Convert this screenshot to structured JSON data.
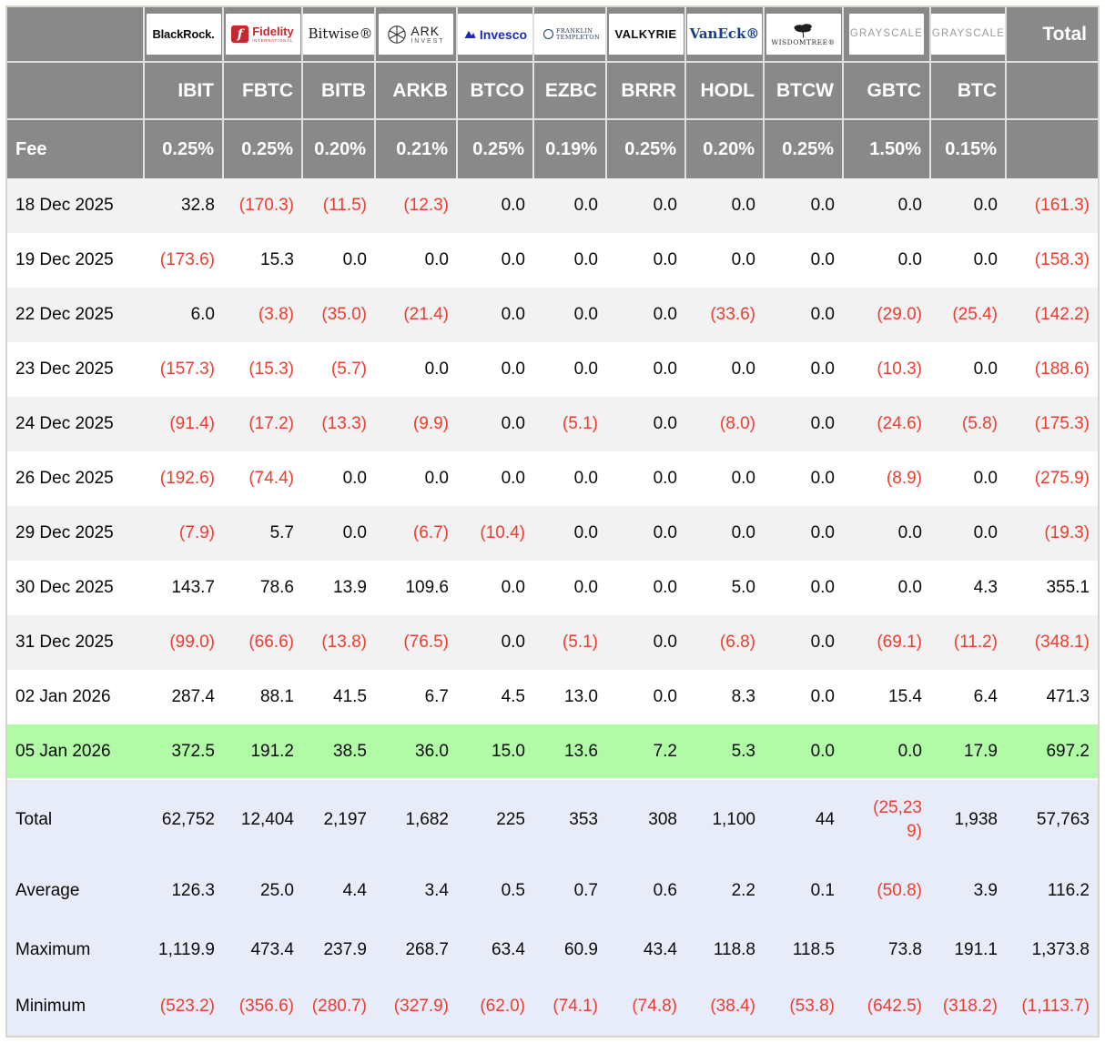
{
  "colors": {
    "hdr-gray": "#898989",
    "row-gray": "#f2f2f2",
    "row-green": "#b1fba6",
    "sum-bg": "#e8ecf8",
    "neg-red": "#f03b2e",
    "fidelity-red": "#c5282f",
    "invesco-blue": "#1c2bbe",
    "vaneck-blue": "#153d8a",
    "franklin-navy": "#233a63",
    "grayscale-gray": "#9b9b9b"
  },
  "chart_data": {
    "type": "table",
    "labels": {
      "fee": "Fee",
      "total_column": "Total"
    },
    "providers": [
      {
        "provider": "BlackRock",
        "logo": "blackrock",
        "logo_text": "BlackRock.",
        "ticker": "IBIT",
        "fee": "0.25%"
      },
      {
        "provider": "Fidelity",
        "logo": "fidelity",
        "logo_text": "Fidelity",
        "logo_sub": "INTERNATIONAL",
        "ticker": "FBTC",
        "fee": "0.25%"
      },
      {
        "provider": "Bitwise",
        "logo": "bitwise",
        "logo_text": "Bitwise®",
        "ticker": "BITB",
        "fee": "0.20%"
      },
      {
        "provider": "ARK Invest",
        "logo": "ark",
        "logo_text": "ARK",
        "logo_sub": "INVEST",
        "ticker": "ARKB",
        "fee": "0.21%"
      },
      {
        "provider": "Invesco",
        "logo": "invesco",
        "logo_text": "Invesco",
        "ticker": "BTCO",
        "fee": "0.25%"
      },
      {
        "provider": "Franklin Templeton",
        "logo": "franklin",
        "logo_text": "FRANKLIN",
        "logo_sub": "TEMPLETON",
        "ticker": "EZBC",
        "fee": "0.19%"
      },
      {
        "provider": "Valkyrie",
        "logo": "valkyrie",
        "logo_text": "VALKYRIE",
        "ticker": "BRRR",
        "fee": "0.25%"
      },
      {
        "provider": "VanEck",
        "logo": "vaneck",
        "logo_text": "VanEck®",
        "ticker": "HODL",
        "fee": "0.20%"
      },
      {
        "provider": "WisdomTree",
        "logo": "wisdomtree",
        "logo_text": "WISDOMTREE®",
        "ticker": "BTCW",
        "fee": "0.25%"
      },
      {
        "provider": "Grayscale",
        "logo": "grayscale",
        "logo_text": "GRAYSCALE",
        "ticker": "GBTC",
        "fee": "1.50%"
      },
      {
        "provider": "Grayscale",
        "logo": "grayscale",
        "logo_text": "GRAYSCALE",
        "ticker": "BTC",
        "fee": "0.15%"
      }
    ],
    "daily_rows": [
      {
        "date": "18 Dec 2025",
        "values": [
          "32.8",
          "(170.3)",
          "(11.5)",
          "(12.3)",
          "0.0",
          "0.0",
          "0.0",
          "0.0",
          "0.0",
          "0.0",
          "0.0"
        ],
        "total": "(161.3)",
        "highlight": false
      },
      {
        "date": "19 Dec 2025",
        "values": [
          "(173.6)",
          "15.3",
          "0.0",
          "0.0",
          "0.0",
          "0.0",
          "0.0",
          "0.0",
          "0.0",
          "0.0",
          "0.0"
        ],
        "total": "(158.3)",
        "highlight": false
      },
      {
        "date": "22 Dec 2025",
        "values": [
          "6.0",
          "(3.8)",
          "(35.0)",
          "(21.4)",
          "0.0",
          "0.0",
          "0.0",
          "(33.6)",
          "0.0",
          "(29.0)",
          "(25.4)"
        ],
        "total": "(142.2)",
        "highlight": false
      },
      {
        "date": "23 Dec 2025",
        "values": [
          "(157.3)",
          "(15.3)",
          "(5.7)",
          "0.0",
          "0.0",
          "0.0",
          "0.0",
          "0.0",
          "0.0",
          "(10.3)",
          "0.0"
        ],
        "total": "(188.6)",
        "highlight": false
      },
      {
        "date": "24 Dec 2025",
        "values": [
          "(91.4)",
          "(17.2)",
          "(13.3)",
          "(9.9)",
          "0.0",
          "(5.1)",
          "0.0",
          "(8.0)",
          "0.0",
          "(24.6)",
          "(5.8)"
        ],
        "total": "(175.3)",
        "highlight": false
      },
      {
        "date": "26 Dec 2025",
        "values": [
          "(192.6)",
          "(74.4)",
          "0.0",
          "0.0",
          "0.0",
          "0.0",
          "0.0",
          "0.0",
          "0.0",
          "(8.9)",
          "0.0"
        ],
        "total": "(275.9)",
        "highlight": false
      },
      {
        "date": "29 Dec 2025",
        "values": [
          "(7.9)",
          "5.7",
          "0.0",
          "(6.7)",
          "(10.4)",
          "0.0",
          "0.0",
          "0.0",
          "0.0",
          "0.0",
          "0.0"
        ],
        "total": "(19.3)",
        "highlight": false
      },
      {
        "date": "30 Dec 2025",
        "values": [
          "143.7",
          "78.6",
          "13.9",
          "109.6",
          "0.0",
          "0.0",
          "0.0",
          "5.0",
          "0.0",
          "0.0",
          "4.3"
        ],
        "total": "355.1",
        "highlight": false
      },
      {
        "date": "31 Dec 2025",
        "values": [
          "(99.0)",
          "(66.6)",
          "(13.8)",
          "(76.5)",
          "0.0",
          "(5.1)",
          "0.0",
          "(6.8)",
          "0.0",
          "(69.1)",
          "(11.2)"
        ],
        "total": "(348.1)",
        "highlight": false
      },
      {
        "date": "02 Jan 2026",
        "values": [
          "287.4",
          "88.1",
          "41.5",
          "6.7",
          "4.5",
          "13.0",
          "0.0",
          "8.3",
          "0.0",
          "15.4",
          "6.4"
        ],
        "total": "471.3",
        "highlight": false
      },
      {
        "date": "05 Jan 2026",
        "values": [
          "372.5",
          "191.2",
          "38.5",
          "36.0",
          "15.0",
          "13.6",
          "7.2",
          "5.3",
          "0.0",
          "0.0",
          "17.9"
        ],
        "total": "697.2",
        "highlight": true
      }
    ],
    "summary_rows": [
      {
        "label": "Total",
        "values": [
          "62,752",
          "12,404",
          "2,197",
          "1,682",
          "225",
          "353",
          "308",
          "1,100",
          "44",
          "(25,239)",
          "1,938"
        ],
        "total": "57,763"
      },
      {
        "label": "Average",
        "values": [
          "126.3",
          "25.0",
          "4.4",
          "3.4",
          "0.5",
          "0.7",
          "0.6",
          "2.2",
          "0.1",
          "(50.8)",
          "3.9"
        ],
        "total": "116.2"
      },
      {
        "label": "Maximum",
        "values": [
          "1,119.9",
          "473.4",
          "237.9",
          "268.7",
          "63.4",
          "60.9",
          "43.4",
          "118.8",
          "118.5",
          "73.8",
          "191.1"
        ],
        "total": "1,373.8"
      },
      {
        "label": "Minimum",
        "values": [
          "(523.2)",
          "(356.6)",
          "(280.7)",
          "(327.9)",
          "(62.0)",
          "(74.1)",
          "(74.8)",
          "(38.4)",
          "(53.8)",
          "(642.5)",
          "(318.2)"
        ],
        "total": "(1,113.7)"
      }
    ]
  }
}
